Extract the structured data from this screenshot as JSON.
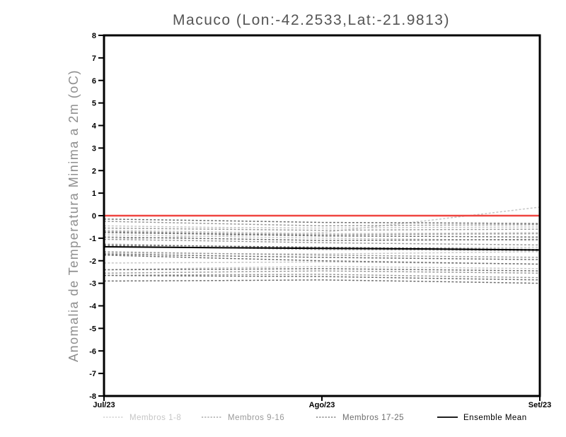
{
  "chart_data": {
    "type": "line",
    "title": "Macuco (Lon:-42.2533,Lat:-21.9813)",
    "ylabel": "Anomalia de Temperatura Minima a 2m (oC)",
    "x_categories": [
      "Jul/23",
      "Ago/23",
      "Set/23"
    ],
    "x_range_note": "series sampled at 5 evenly spaced points from Jul/23 to Set/23",
    "ylim": [
      -8,
      8
    ],
    "ytick_step": 1,
    "grid": false,
    "zero_line": {
      "value": 0,
      "color": "#ef4540"
    },
    "colors": {
      "members_1_8": "#c6c6c6",
      "members_9_16": "#9a9a9a",
      "members_17_25": "#6e6e6e",
      "mean": "#000000",
      "frame": "#000000"
    },
    "legend": [
      {
        "label": "Membros 1-8",
        "group": "members_1_8",
        "style": "dashed"
      },
      {
        "label": "Membros 9-16",
        "group": "members_9_16",
        "style": "dashed"
      },
      {
        "label": "Membros 17-25",
        "group": "members_17_25",
        "style": "dashed"
      },
      {
        "label": "Ensemble Mean",
        "group": "mean",
        "style": "solid"
      }
    ],
    "series": [
      {
        "name": "member-1",
        "group": "members_1_8",
        "values": [
          -1.05,
          -0.9,
          -0.75,
          -0.2,
          0.38
        ]
      },
      {
        "name": "member-2",
        "group": "members_1_8",
        "values": [
          -0.45,
          -0.52,
          -0.55,
          -0.52,
          -0.5
        ]
      },
      {
        "name": "member-3",
        "group": "members_1_8",
        "values": [
          -2.1,
          -2.08,
          -2.05,
          -2.1,
          -2.15
        ]
      },
      {
        "name": "member-4",
        "group": "members_1_8",
        "values": [
          -0.65,
          -0.72,
          -0.8,
          -0.78,
          -0.75
        ]
      },
      {
        "name": "member-5",
        "group": "members_1_8",
        "values": [
          -1.25,
          -1.35,
          -1.45,
          -1.42,
          -1.4
        ]
      },
      {
        "name": "member-6",
        "group": "members_1_8",
        "values": [
          -2.4,
          -2.32,
          -2.25,
          -2.3,
          -2.35
        ]
      },
      {
        "name": "member-7",
        "group": "members_1_8",
        "values": [
          -0.85,
          -0.92,
          -1.0,
          -1.05,
          -1.1
        ]
      },
      {
        "name": "member-8",
        "group": "members_1_8",
        "values": [
          -1.65,
          -1.68,
          -1.7,
          -1.65,
          -1.6
        ]
      },
      {
        "name": "member-9",
        "group": "members_9_16",
        "values": [
          -0.25,
          -0.35,
          -0.45,
          -0.42,
          -0.4
        ]
      },
      {
        "name": "member-10",
        "group": "members_9_16",
        "values": [
          -0.7,
          -0.78,
          -0.85,
          -0.82,
          -0.8
        ]
      },
      {
        "name": "member-11",
        "group": "members_9_16",
        "values": [
          -1.05,
          -1.12,
          -1.2,
          -1.25,
          -1.3
        ]
      },
      {
        "name": "member-12",
        "group": "members_9_16",
        "values": [
          -1.6,
          -1.68,
          -1.75,
          -1.8,
          -1.85
        ]
      },
      {
        "name": "member-13",
        "group": "members_9_16",
        "values": [
          -2.55,
          -2.5,
          -2.45,
          -2.5,
          -2.55
        ]
      },
      {
        "name": "member-14",
        "group": "members_9_16",
        "values": [
          -0.55,
          -0.6,
          -0.65,
          -0.62,
          -0.6
        ]
      },
      {
        "name": "member-15",
        "group": "members_9_16",
        "values": [
          -1.35,
          -1.42,
          -1.5,
          -1.52,
          -1.55
        ]
      },
      {
        "name": "member-16",
        "group": "members_9_16",
        "values": [
          -2.65,
          -2.62,
          -2.6,
          -2.68,
          -2.75
        ]
      },
      {
        "name": "member-17",
        "group": "members_17_25",
        "values": [
          -0.15,
          -0.22,
          -0.3,
          -0.32,
          -0.35
        ]
      },
      {
        "name": "member-18",
        "group": "members_17_25",
        "values": [
          -0.75,
          -0.82,
          -0.9,
          -0.92,
          -0.95
        ]
      },
      {
        "name": "member-19",
        "group": "members_17_25",
        "values": [
          -0.95,
          -1.02,
          -1.1,
          -1.08,
          -1.05
        ]
      },
      {
        "name": "member-20",
        "group": "members_17_25",
        "values": [
          -1.3,
          -1.35,
          -1.4,
          -1.45,
          -1.5
        ]
      },
      {
        "name": "member-21",
        "group": "members_17_25",
        "values": [
          -1.7,
          -1.78,
          -1.85,
          -1.9,
          -1.95
        ]
      },
      {
        "name": "member-22",
        "group": "members_17_25",
        "values": [
          -1.75,
          -1.88,
          -2.0,
          -2.08,
          -2.15
        ]
      },
      {
        "name": "member-23",
        "group": "members_17_25",
        "values": [
          -2.4,
          -2.38,
          -2.35,
          -2.4,
          -2.45
        ]
      },
      {
        "name": "member-24",
        "group": "members_17_25",
        "values": [
          -2.65,
          -2.68,
          -2.7,
          -2.78,
          -2.85
        ]
      },
      {
        "name": "member-25",
        "group": "members_17_25",
        "values": [
          -2.9,
          -2.88,
          -2.85,
          -2.92,
          -3.0
        ]
      },
      {
        "name": "ensemble-mean",
        "group": "mean",
        "values": [
          -1.38,
          -1.42,
          -1.45,
          -1.48,
          -1.52
        ]
      }
    ]
  }
}
